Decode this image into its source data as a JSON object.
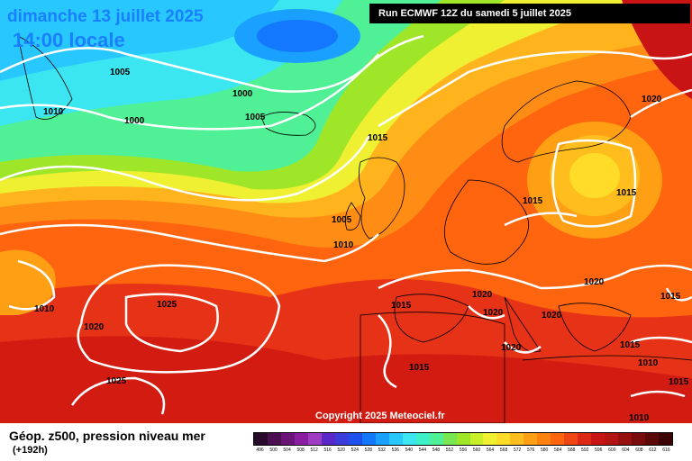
{
  "header": {
    "date": "dimanche 13 juillet 2025",
    "time": "14:00 locale",
    "run": "Run ECMWF 12Z du samedi 5 juillet 2025"
  },
  "copyright": "Copyright 2025 Meteociel.fr",
  "footer": {
    "field": "Géop. z500, pression niveau mer",
    "lead": "(+192h)"
  },
  "isobar_labels": [
    "1005",
    "1000",
    "1010",
    "1000",
    "1005",
    "1015",
    "1020",
    "1015",
    "1015",
    "1005",
    "1010",
    "1010",
    "1025",
    "1020",
    "1025",
    "1020",
    "1020",
    "1015",
    "1020",
    "1020",
    "1015",
    "1015",
    "1015",
    "1020",
    "1010",
    "1010",
    "1015"
  ],
  "scale": {
    "labels": [
      "496",
      "500",
      "504",
      "508",
      "512",
      "516",
      "520",
      "524",
      "528",
      "532",
      "536",
      "540",
      "544",
      "548",
      "552",
      "556",
      "560",
      "564",
      "568",
      "572",
      "576",
      "580",
      "584",
      "588",
      "592",
      "596",
      "600",
      "604",
      "608",
      "612",
      "616"
    ],
    "colors": [
      "#2a0a2a",
      "#4a1050",
      "#6a1478",
      "#8a1ea0",
      "#9e3cc4",
      "#5a28c8",
      "#3c3cdc",
      "#1e50f0",
      "#1478ff",
      "#1aa0ff",
      "#28c8ff",
      "#3ce6f0",
      "#3cf0c8",
      "#50f096",
      "#78e650",
      "#a0e628",
      "#c8f028",
      "#f0f032",
      "#ffdc28",
      "#ffbe1e",
      "#ffa014",
      "#ff820f",
      "#ff640f",
      "#f04614",
      "#dc2814",
      "#c81414",
      "#b41414",
      "#961010",
      "#780c0c",
      "#5a0808",
      "#3c0404"
    ]
  }
}
